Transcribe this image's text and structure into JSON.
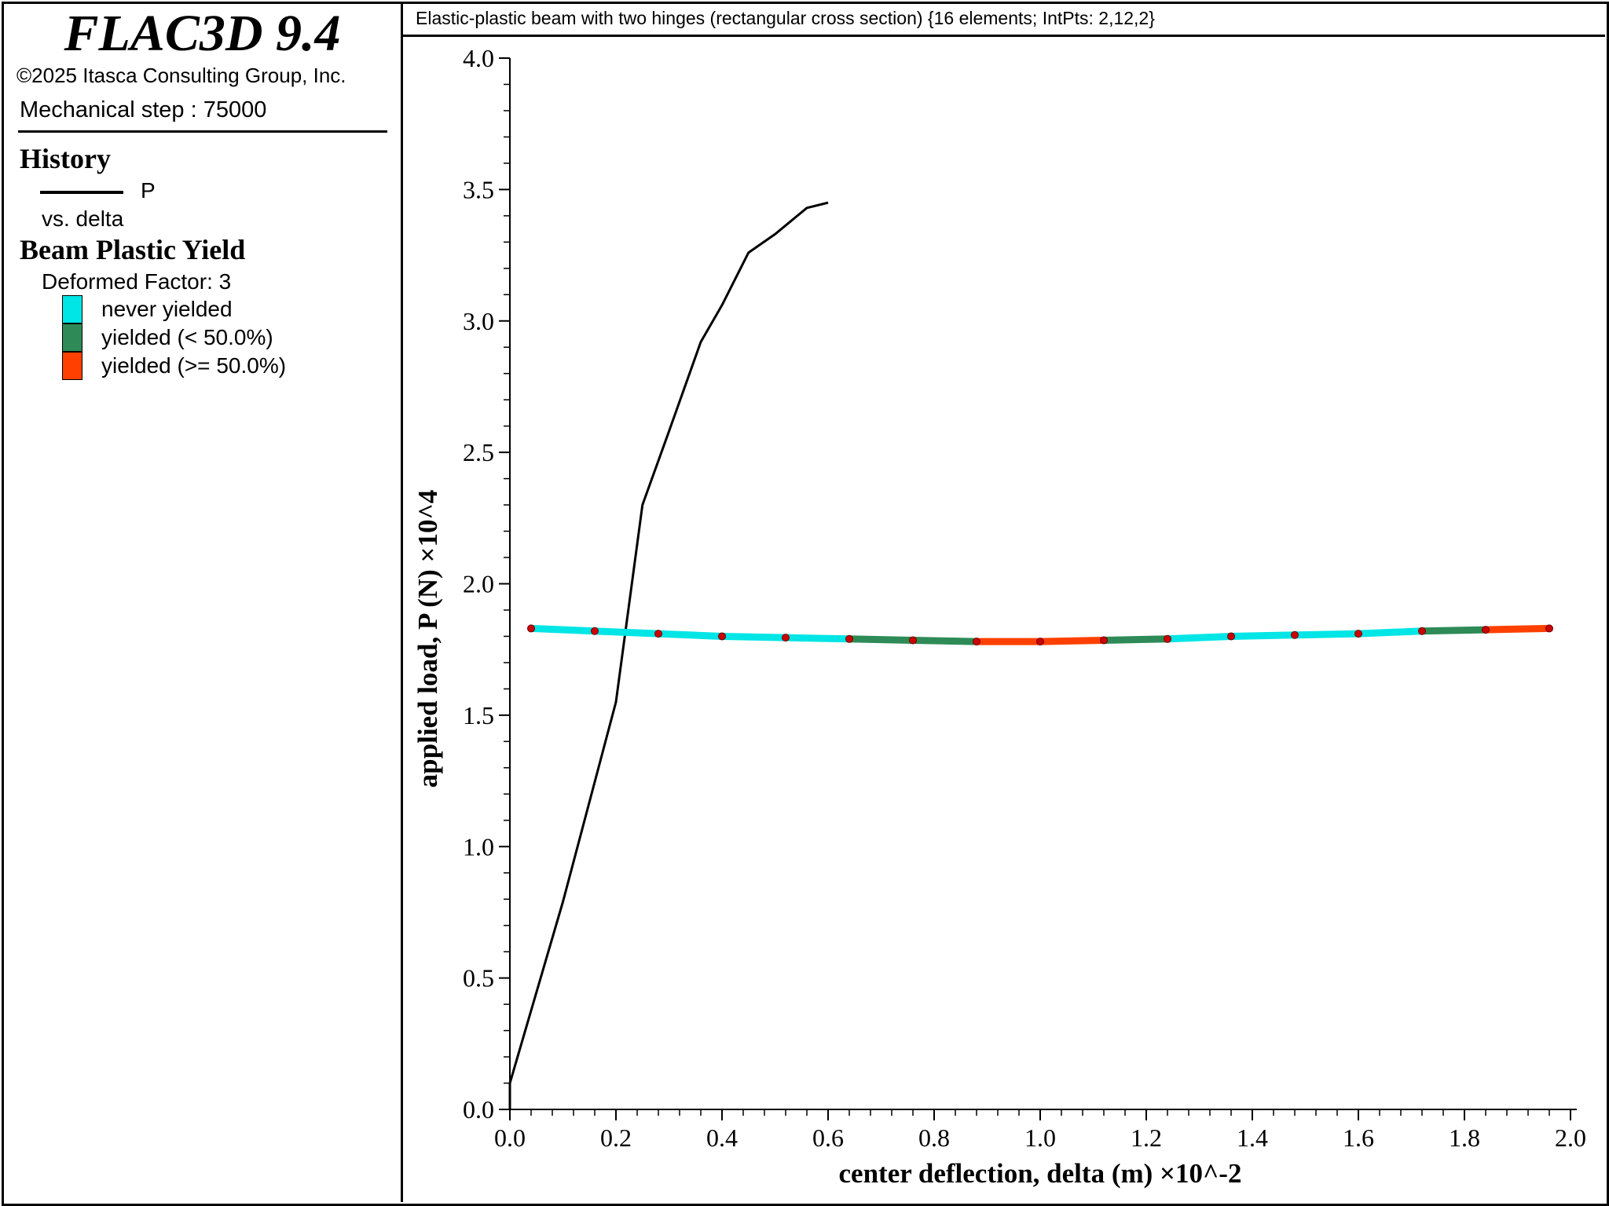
{
  "app": {
    "title": "FLAC3D 9.4",
    "copyright": "©2025 Itasca Consulting Group, Inc.",
    "step": "Mechanical step : 75000"
  },
  "legend": {
    "history_heading": "History",
    "history_series": "P",
    "history_vs": "vs. delta",
    "yield_heading": "Beam Plastic Yield",
    "deformed_factor": "Deformed Factor: 3",
    "items": [
      {
        "label": "never yielded",
        "color": "#00e5e5"
      },
      {
        "label": "yielded (< 50.0%)",
        "color": "#2e8b57"
      },
      {
        "label": "yielded (>= 50.0%)",
        "color": "#ff4000"
      }
    ]
  },
  "plot": {
    "title": "Elastic-plastic beam with two hinges (rectangular cross section) {16 elements; IntPts: 2,12,2}"
  },
  "chart_data": {
    "type": "line",
    "xlabel": "center deflection, delta (m) ×10^-2",
    "ylabel": "applied load, P (N) ×10^4",
    "xlim": [
      0.0,
      2.0
    ],
    "ylim": [
      0.0,
      4.0
    ],
    "xticks": [
      "0.0",
      "0.2",
      "0.4",
      "0.6",
      "0.8",
      "1.0",
      "1.2",
      "1.4",
      "1.6",
      "1.8",
      "2.0"
    ],
    "yticks": [
      "0.0",
      "0.5",
      "1.0",
      "1.5",
      "2.0",
      "2.5",
      "3.0",
      "3.5",
      "4.0"
    ],
    "grid": false,
    "series": [
      {
        "name": "P",
        "color": "#000000",
        "x": [
          0.0,
          0.0,
          0.1,
          0.2,
          0.25,
          0.3,
          0.36,
          0.4,
          0.45,
          0.5,
          0.56,
          0.6
        ],
        "y": [
          0.0,
          0.1,
          0.79,
          1.55,
          2.3,
          2.58,
          2.92,
          3.06,
          3.26,
          3.33,
          3.43,
          3.45
        ]
      }
    ],
    "beam_overlay": {
      "element_yield": [
        "never yielded",
        "never yielded",
        "never yielded",
        "never yielded",
        "never yielded",
        "yielded (< 50.0%)",
        "yielded (< 50.0%)",
        "yielded (>= 50.0%)",
        "yielded (>= 50.0%)",
        "yielded (< 50.0%)",
        "never yielded",
        "never yielded",
        "never yielded",
        "never yielded",
        "yielded (< 50.0%)",
        "yielded (>= 50.0%)"
      ],
      "node_x": [
        0.04,
        0.16,
        0.28,
        0.4,
        0.52,
        0.64,
        0.76,
        0.88,
        1.0,
        1.12,
        1.24,
        1.36,
        1.48,
        1.6,
        1.72,
        1.84,
        1.96
      ],
      "node_y": [
        1.83,
        1.82,
        1.81,
        1.8,
        1.795,
        1.79,
        1.785,
        1.78,
        1.78,
        1.785,
        1.79,
        1.8,
        1.805,
        1.81,
        1.82,
        1.825,
        1.83
      ],
      "node_color": "#cc0000"
    }
  }
}
